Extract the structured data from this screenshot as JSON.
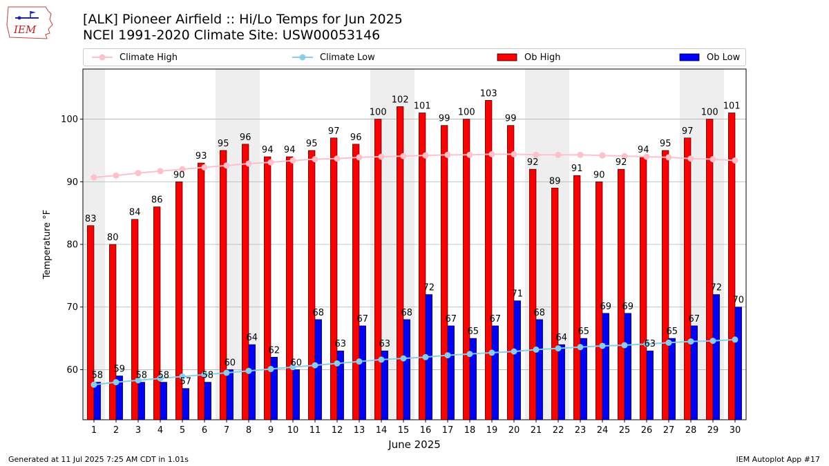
{
  "header": {
    "logo_text": "IEM",
    "title_line1": "[ALK] Pioneer Airfield :: Hi/Lo Temps for Jun 2025",
    "title_line2": "NCEI 1991-2020 Climate Site: USW00053146"
  },
  "legend": {
    "climate_high": "Climate High",
    "climate_low": "Climate Low",
    "ob_high": "Ob High",
    "ob_low": "Ob Low"
  },
  "colors": {
    "ob_high": "#ff0000",
    "ob_low": "#0000ff",
    "climate_high": "#ffc0cb",
    "climate_low": "#87ceeb",
    "weekend_shade": "#eeeeee",
    "grid": "#b0b0b0"
  },
  "chart_data": {
    "type": "bar",
    "xlabel": "June 2025",
    "ylabel": "Temperature °F",
    "ylim": [
      52,
      108
    ],
    "yticks": [
      60,
      70,
      80,
      90,
      100
    ],
    "grid": "horizontal",
    "legend_position": "top",
    "categories": [
      "1",
      "2",
      "3",
      "4",
      "5",
      "6",
      "7",
      "8",
      "9",
      "10",
      "11",
      "12",
      "13",
      "14",
      "15",
      "16",
      "17",
      "18",
      "19",
      "20",
      "21",
      "22",
      "23",
      "24",
      "25",
      "26",
      "27",
      "28",
      "29",
      "30"
    ],
    "shaded_days": [
      1,
      7,
      8,
      14,
      15,
      21,
      22,
      28,
      29
    ],
    "series": [
      {
        "name": "Ob High",
        "kind": "bar",
        "values": [
          83,
          80,
          84,
          86,
          90,
          93,
          95,
          96,
          94,
          94,
          95,
          97,
          96,
          100,
          102,
          101,
          99,
          100,
          103,
          99,
          92,
          89,
          91,
          90,
          92,
          94,
          95,
          97,
          100,
          101
        ]
      },
      {
        "name": "Ob Low",
        "kind": "bar",
        "values": [
          58,
          59,
          58,
          58,
          57,
          58,
          60,
          64,
          62,
          60,
          68,
          63,
          67,
          63,
          68,
          72,
          67,
          65,
          67,
          71,
          68,
          64,
          65,
          69,
          69,
          63,
          65,
          67,
          72,
          70
        ]
      },
      {
        "name": "Climate High",
        "kind": "line",
        "values": [
          90.7,
          91.0,
          91.4,
          91.7,
          92.0,
          92.3,
          92.6,
          92.9,
          93.1,
          93.4,
          93.6,
          93.7,
          93.9,
          94.0,
          94.1,
          94.2,
          94.3,
          94.3,
          94.4,
          94.4,
          94.3,
          94.3,
          94.3,
          94.2,
          94.1,
          94.0,
          93.9,
          93.7,
          93.6,
          93.4
        ]
      },
      {
        "name": "Climate Low",
        "kind": "line",
        "values": [
          57.6,
          58.0,
          58.3,
          58.6,
          58.9,
          59.2,
          59.5,
          59.8,
          60.1,
          60.4,
          60.7,
          61.0,
          61.3,
          61.6,
          61.8,
          62.0,
          62.3,
          62.5,
          62.7,
          62.9,
          63.2,
          63.4,
          63.6,
          63.8,
          63.9,
          64.1,
          64.3,
          64.5,
          64.6,
          64.8
        ]
      }
    ]
  },
  "footer": {
    "generated": "Generated at 11 Jul 2025 7:25 AM CDT in 1.01s",
    "app": "IEM Autoplot App #17"
  }
}
